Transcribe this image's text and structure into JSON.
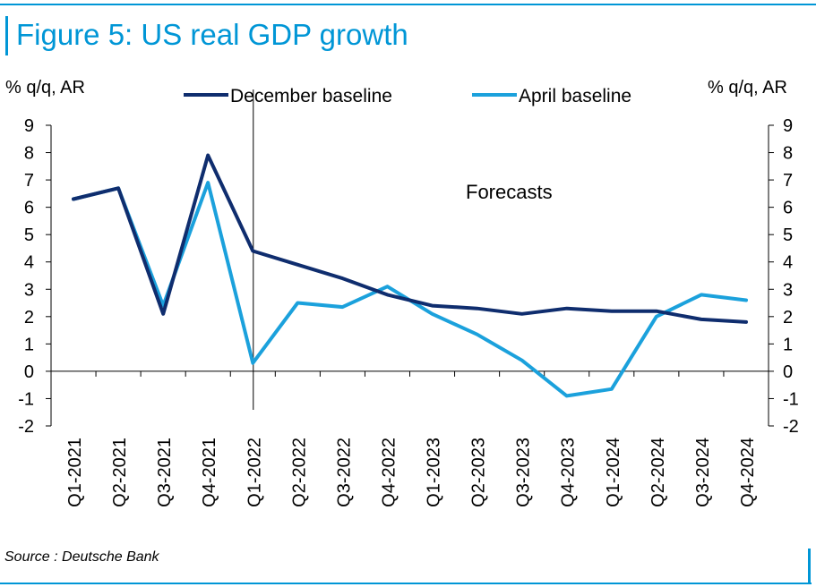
{
  "figure": {
    "title": "Figure 5: US real GDP growth",
    "source": "Source : Deutsche Bank"
  },
  "colors": {
    "accent": "#0096d6",
    "december": "#0f2d6e",
    "april": "#1ba1dc"
  },
  "chart_data": {
    "type": "line",
    "ylabel_left": "% q/q, AR",
    "ylabel_right": "% q/q, AR",
    "ylim": [
      -2,
      9
    ],
    "yticks": [
      "9",
      "8",
      "7",
      "6",
      "5",
      "4",
      "3",
      "2",
      "1",
      "0",
      "-1",
      "-2"
    ],
    "categories": [
      "Q1-2021",
      "Q2-2021",
      "Q3-2021",
      "Q4-2021",
      "Q1-2022",
      "Q2-2022",
      "Q3-2022",
      "Q4-2022",
      "Q1-2023",
      "Q2-2023",
      "Q3-2023",
      "Q4-2023",
      "Q1-2024",
      "Q2-2024",
      "Q3-2024",
      "Q4-2024"
    ],
    "series": [
      {
        "name": "December baseline",
        "values": [
          6.3,
          6.7,
          2.1,
          7.9,
          4.4,
          3.9,
          3.4,
          2.8,
          2.4,
          2.3,
          2.1,
          2.3,
          2.2,
          2.2,
          1.9,
          1.8
        ]
      },
      {
        "name": "April baseline",
        "values": [
          6.3,
          6.7,
          2.4,
          6.9,
          0.3,
          2.5,
          2.35,
          3.1,
          2.1,
          1.35,
          0.4,
          -0.9,
          -0.65,
          2.0,
          2.8,
          2.6
        ]
      }
    ],
    "annotation": "Forecasts",
    "forecast_start": "Q1-2022",
    "legend_position": "top",
    "grid": false
  }
}
